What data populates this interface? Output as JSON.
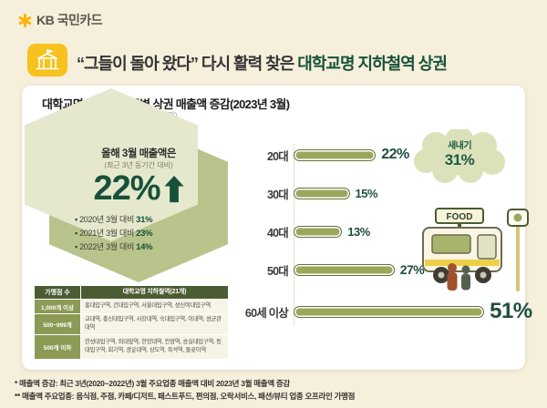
{
  "brand": {
    "logo_text": "KB 국민카드"
  },
  "header": {
    "title_quote": "“그들이 돌아 왔다”",
    "title_mid": " 다시 활력 찾은 ",
    "title_highlight": "대학교명 지하철역 상권"
  },
  "card": {
    "title": "대학교명 지하철역 주변 상권 매출액 증감(2023년 3월)",
    "note_station_count": "(21개)",
    "note_radius": "(500m 미만)"
  },
  "badge": {
    "line1": "올해 3월 매출액은",
    "line2": "(최근 3년 동기간 대비)",
    "value": "22%",
    "items": [
      {
        "label": "2020년 3월 대비",
        "value": "31%"
      },
      {
        "label": "2021년 3월 대비",
        "value": "23%"
      },
      {
        "label": "2022년 3월 대비",
        "value": "14%"
      }
    ]
  },
  "table": {
    "header": [
      "가맹점 수",
      "대학교명 지하철역(21개)"
    ],
    "rows": [
      {
        "label": "1,000개 이상",
        "value": "홍대입구역, 건대입구역, 서울대입구역, 성신여대입구역"
      },
      {
        "label": "500~999개",
        "value": "교대역, 총신대입구역, 서강대역, 숙대입구역, 이대역, 성균관대역"
      },
      {
        "label": "500개 이하",
        "value": "한성대입구역, 외대앞역, 한양대역, 안암역, 숭실대입구역, 동대입구역, 회기역, 광운대역, 상도역, 흑석역, 돌곶이역"
      }
    ]
  },
  "chart_data": {
    "type": "bar",
    "orientation": "horizontal",
    "title": "대학교명 지하철역 주변 상권 매출액 증감(2023년 3월)",
    "categories": [
      "20대",
      "30대",
      "40대",
      "50대",
      "60세 이상"
    ],
    "values": [
      22,
      15,
      13,
      27,
      51
    ],
    "value_labels": [
      "22%",
      "15%",
      "13%",
      "27%",
      "51%"
    ],
    "unit": "%",
    "xlim": [
      0,
      55
    ],
    "annotation": {
      "label": "새내기",
      "value": "31%",
      "target": "20대"
    },
    "bar_color": "#9aa85e",
    "bar_border_color": "#64723a",
    "value_color": "#1e4f3e"
  },
  "illustration": {
    "food_sign": "FOOD"
  },
  "footnotes": [
    "* 매출액 증감: 최근 3년(2020~2022년) 3월 주요업종 매출액 대비 2023년 3월 매출액 증감",
    "** 매출액 주요업종: 음식점, 주점, 카페/디저트, 패스트푸드, 편의점, 오락서비스, 패션/뷰티 업종 오프라인 가맹점"
  ],
  "colors": {
    "background": "#f5efdb",
    "card": "#ffffff",
    "kb_yellow": "#f7c11e",
    "dark_green": "#17513a",
    "olive": "#9aa85e",
    "hex_fill": "#e5e8cc",
    "table_header": "#4c5c32"
  }
}
